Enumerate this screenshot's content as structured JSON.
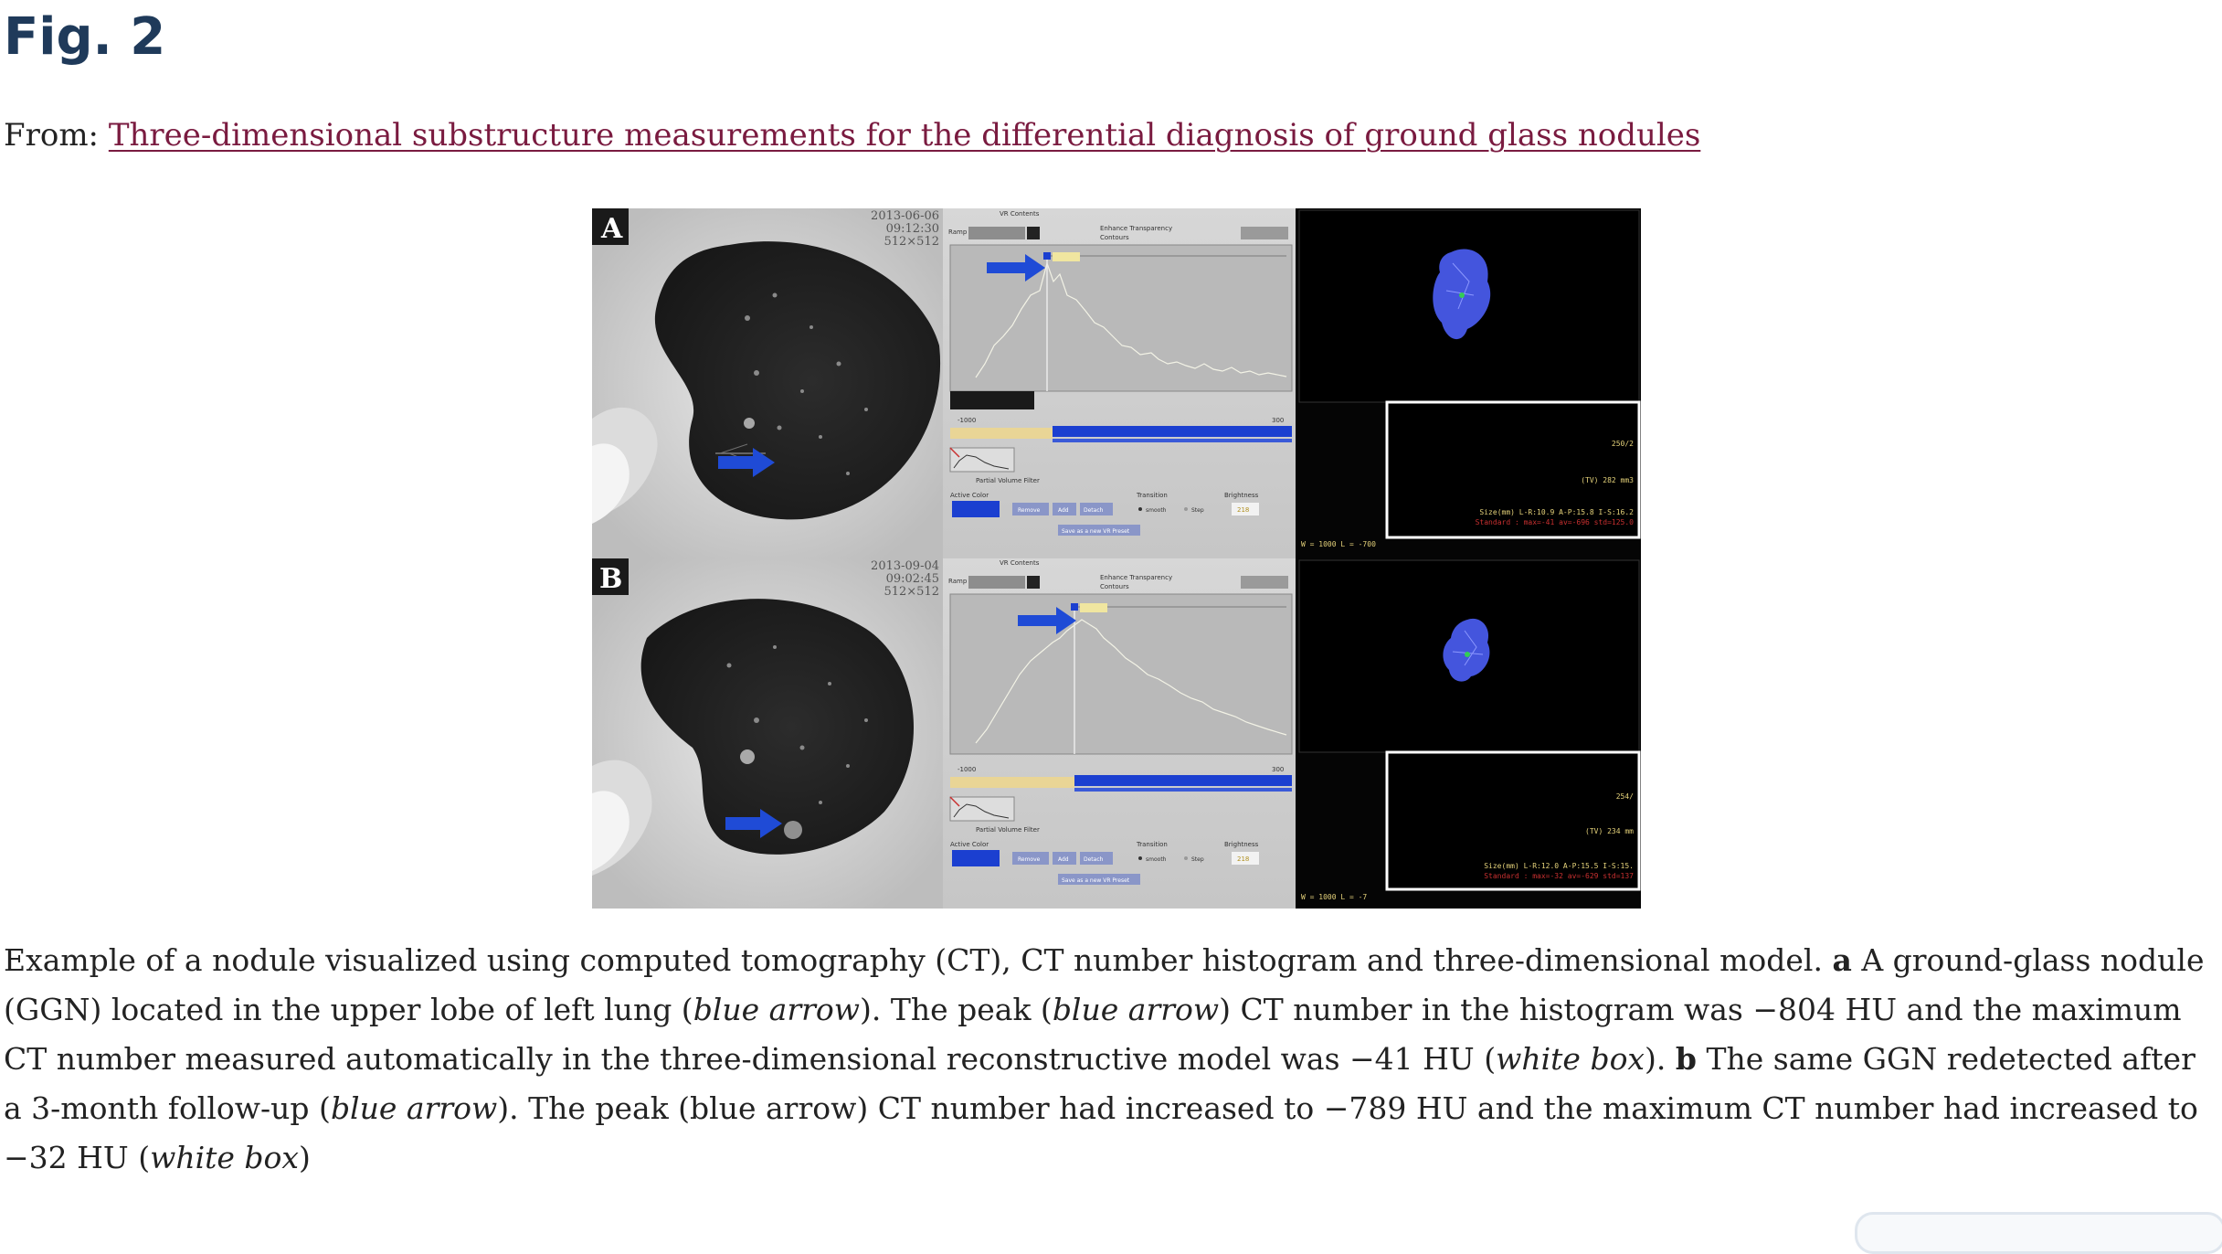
{
  "figure": {
    "title": "Fig. 2",
    "from_label": "From:",
    "article_link": "Three-dimensional substructure measurements for the differential diagnosis of ground glass nodules"
  },
  "image": {
    "panel_a": {
      "letter": "A",
      "date": "2013-06-06",
      "time": "09:12:30",
      "matrix": "512×512",
      "window_readout": "W = 1000 L = -700",
      "tv": "(TV) 282 mm3",
      "size_line": "Size(mm) L-R:10.9 A-P:15.8 I-S:16.2",
      "standard_line": "Standard : max=-41 av=-696 std=125.0",
      "brightness": "218",
      "corner_value": "250/2"
    },
    "panel_b": {
      "letter": "B",
      "date": "2013-09-04",
      "time": "09:02:45",
      "matrix": "512×512",
      "window_readout": "W = 1000 L = -7",
      "tv": "(TV) 234 mm",
      "size_line": "Size(mm) L-R:12.0 A-P:15.5 I-S:15.",
      "standard_line": "Standard : max=-32 av=-629 std=137",
      "brightness": "218",
      "corner_value": "254/"
    },
    "vr_contents_label": "VR Contents",
    "ramp_label": "Ramp",
    "enhance_transparency": "Enhance Transparency",
    "contours_label": "Contours",
    "partial_volume_filter": "Partial Volume Filter",
    "active_color": "Active Color",
    "transition_label": "Transition",
    "brightness_label": "Brightness",
    "remove_btn": "Remove",
    "add_btn": "Add",
    "detach_btn": "Detach",
    "smooth_label": "smooth",
    "step_label": "Step",
    "save_preset": "Save as a new VR Preset",
    "axis_min": "-1000",
    "axis_max": "300",
    "colors": {
      "arrow_blue": "#1f4bd6",
      "histogram_bg": "#b9b9b9",
      "bar_yellow": "#e9d596",
      "bar_blue": "#1b3fd0",
      "model_blue": "#4455dd",
      "overlay_red": "#c93030"
    }
  },
  "caption": {
    "p1": "Example of a nodule visualized using computed tomography (CT), CT number histogram and three-dimensional model. ",
    "a_label": "a",
    "p2": " A ground-glass nodule (GGN) located in the upper lobe of left lung (",
    "blue_arrow_1": "blue arrow",
    "p3": "). The peak (",
    "blue_arrow_2": "blue arrow",
    "p4": ") CT number in the histogram was −804 HU and the maximum CT number measured automatically in the three-dimensional reconstructive model was −41 HU (",
    "white_box_1": "white box",
    "p5": "). ",
    "b_label": "b",
    "p6": " The same GGN redetected after a 3-month follow-up (",
    "blue_arrow_3": "blue arrow",
    "p7": "). The peak (blue arrow) CT number had increased to −789 HU and the maximum CT number had increased to −32 HU (",
    "white_box_2": "white box",
    "p8": ")"
  }
}
